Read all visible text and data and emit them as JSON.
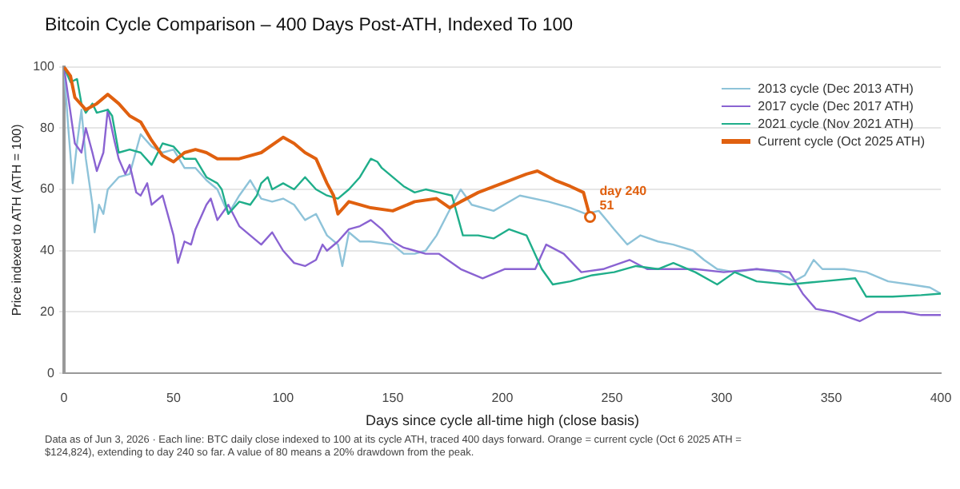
{
  "chart_data": {
    "type": "line",
    "title": "Bitcoin Cycle Comparison – 400 Days Post-ATH, Indexed To 100",
    "xlabel": "Days since cycle all-time high (close basis)",
    "ylabel": "Price indexed to ATH (ATH = 100)",
    "xlim": [
      0,
      400
    ],
    "xticks": [
      0,
      50,
      100,
      150,
      200,
      250,
      300,
      350,
      400
    ],
    "ylim": [
      0,
      100
    ],
    "yticks": [
      0,
      20,
      40,
      60,
      80,
      100
    ],
    "grid": "y",
    "legend": "top right",
    "marker": "none",
    "line_style": "solid",
    "series": [
      {
        "name": "2013 cycle (Dec 2013 ATH)",
        "color": "#8ec3d9",
        "x": [
          0,
          2,
          4,
          6,
          8,
          10,
          13,
          14,
          16,
          18,
          20,
          25,
          30,
          35,
          40,
          45,
          50,
          55,
          60,
          65,
          70,
          75,
          80,
          85,
          90,
          95,
          100,
          105,
          110,
          115,
          120,
          125,
          127,
          130,
          135,
          140,
          150,
          155,
          160,
          165,
          170,
          175,
          181,
          186,
          196,
          208,
          221,
          231,
          238,
          244,
          251,
          257,
          263,
          271,
          278,
          287,
          292,
          298,
          306,
          316,
          326,
          333,
          338,
          342,
          346,
          356,
          366,
          376,
          386,
          395,
          400
        ],
        "values": [
          100,
          80,
          62,
          75,
          86,
          70,
          55,
          46,
          55,
          52,
          60,
          64,
          65,
          78,
          74,
          72,
          73,
          67,
          67,
          63,
          60,
          52,
          58,
          63,
          57,
          56,
          57,
          55,
          50,
          52,
          45,
          42,
          35,
          46,
          43,
          43,
          42,
          39,
          39,
          40,
          45,
          52,
          60,
          55,
          53,
          58,
          56,
          54,
          52,
          53,
          47,
          42,
          45,
          43,
          42,
          40,
          37,
          34,
          33,
          34,
          33,
          30,
          32,
          37,
          34,
          34,
          33,
          30,
          29,
          28,
          26
        ]
      },
      {
        "name": "2017 cycle (Dec 2017 ATH)",
        "color": "#8a63d2",
        "x": [
          0,
          3,
          5,
          8,
          10,
          13,
          15,
          18,
          20,
          23,
          25,
          28,
          30,
          33,
          35,
          38,
          40,
          45,
          50,
          52,
          55,
          58,
          60,
          65,
          67,
          70,
          75,
          80,
          85,
          90,
          95,
          100,
          105,
          110,
          115,
          118,
          120,
          125,
          130,
          135,
          140,
          145,
          150,
          155,
          160,
          165,
          171,
          181,
          191,
          201,
          215,
          220,
          228,
          236,
          246,
          258,
          266,
          276,
          288,
          301,
          316,
          331,
          337,
          343,
          351,
          363,
          371,
          383,
          391,
          400
        ],
        "values": [
          100,
          85,
          75,
          72,
          80,
          72,
          66,
          72,
          86,
          76,
          70,
          65,
          68,
          59,
          58,
          62,
          55,
          58,
          45,
          36,
          43,
          42,
          47,
          55,
          57,
          50,
          55,
          48,
          45,
          42,
          46,
          40,
          36,
          35,
          37,
          42,
          40,
          43,
          47,
          48,
          50,
          47,
          43,
          41,
          40,
          39,
          39,
          34,
          31,
          34,
          34,
          42,
          39,
          33,
          34,
          37,
          34,
          34,
          34,
          33,
          34,
          33,
          26,
          21,
          20,
          17,
          20,
          20,
          19,
          19
        ]
      },
      {
        "name": "2021 cycle (Nov 2021 ATH)",
        "color": "#1fae8a",
        "x": [
          0,
          3,
          6,
          8,
          10,
          13,
          15,
          20,
          22,
          25,
          30,
          35,
          40,
          45,
          50,
          55,
          60,
          65,
          70,
          72,
          75,
          80,
          85,
          88,
          90,
          93,
          95,
          100,
          105,
          110,
          115,
          120,
          125,
          130,
          135,
          140,
          143,
          145,
          150,
          155,
          160,
          165,
          171,
          177,
          182,
          189,
          196,
          203,
          211,
          218,
          223,
          231,
          241,
          251,
          261,
          271,
          278,
          288,
          298,
          306,
          316,
          331,
          346,
          361,
          366,
          378,
          391,
          400
        ],
        "values": [
          100,
          95,
          96,
          88,
          85,
          88,
          85,
          86,
          84,
          72,
          73,
          72,
          68,
          75,
          74,
          70,
          70,
          64,
          62,
          60,
          52,
          56,
          55,
          58,
          62,
          64,
          60,
          62,
          60,
          64,
          60,
          58,
          57,
          60,
          64,
          70,
          69,
          67,
          64,
          61,
          59,
          60,
          59,
          58,
          45,
          45,
          44,
          47,
          45,
          34,
          29,
          30,
          32,
          33,
          35,
          34,
          36,
          33,
          29,
          33,
          30,
          29,
          30,
          31,
          25,
          25,
          25.5,
          26
        ]
      },
      {
        "name": "Current cycle (Oct 2025 ATH)",
        "color": "#e0600f",
        "x": [
          0,
          3,
          5,
          10,
          15,
          20,
          25,
          30,
          35,
          40,
          45,
          50,
          55,
          60,
          65,
          70,
          75,
          80,
          90,
          100,
          105,
          110,
          115,
          120,
          123,
          125,
          130,
          140,
          150,
          160,
          170,
          176,
          181,
          189,
          200,
          211,
          216,
          224,
          231,
          237,
          240
        ],
        "values": [
          100,
          97,
          90,
          86,
          88,
          91,
          88,
          84,
          82,
          76,
          71,
          69,
          72,
          73,
          72,
          70,
          70,
          70,
          72,
          77,
          75,
          72,
          70,
          62,
          58,
          52,
          56,
          54,
          53,
          56,
          57,
          54,
          56,
          59,
          62,
          65,
          66,
          63,
          61,
          59,
          51
        ]
      }
    ],
    "annotations": [
      {
        "text": "day 240",
        "x": 240,
        "y": 51
      },
      {
        "text": "51",
        "x": 240,
        "y": 51
      },
      "Data as of Jun 3, 2026 · Each line: BTC daily close indexed to 100 at its cycle ATH, traced 400 days forward. Orange = current cycle (Oct 6 2025 ATH = $124,824), extending to day 240 so far. A value of 80 means a 20% drawdown from the peak."
    ]
  }
}
